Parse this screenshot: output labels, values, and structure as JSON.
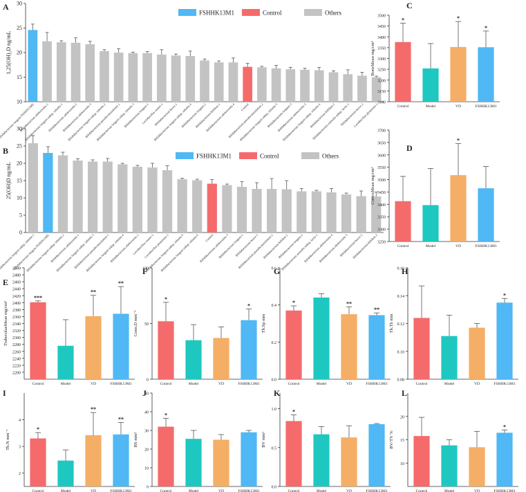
{
  "colors": {
    "FSHHK13M1": "#4fb8f5",
    "Control": "#f56b6b",
    "Model": "#1ec8c0",
    "VD": "#f5ae66",
    "Others": "#c3c3c3"
  },
  "legend": [
    {
      "label": "FSHHK13M1",
      "color_key": "FSHHK13M1"
    },
    {
      "label": "Control",
      "color_key": "Control"
    },
    {
      "label": "Others",
      "color_key": "Others"
    }
  ],
  "chart_data": [
    {
      "panel": "A",
      "type": "bar",
      "ylabel": "1,25(OH)₂D ng/mL",
      "ylim": [
        10,
        30
      ],
      "yticks": [
        10,
        15,
        20,
        25,
        30
      ],
      "categories": [
        "Bifidobacterium longum FSHHK13M1",
        "Bifidobacterium adolescentis 1",
        "Bifidobacterium longum subsp. infantis 1",
        "Bifidobacterium adolescentis 2",
        "Bifidobacterium adolescentis 3",
        "Bifidobacterium longum subsp. infantis 2",
        "Bifidobacterium pseudocatenulatum 1",
        "Bifidobacterium longum subsp. infantis 3",
        "Bifidobacterium longum 1",
        "Lactobacillus reuteri 1",
        "Bifidobacterium breve 1",
        "Bifidobacterium longum subsp. infantis 4",
        "Bifidobacterium longum 2",
        "Bifidobacterium bifidum 1",
        "Bifidobacterium adolescentis 4",
        "Control",
        "Bifidobacterium pseudocatenulatum 2",
        "Bifidobacterium longum subsp. infantis 5",
        "Bifidobacterium longum 3",
        "Bifidobacterium adolescentis 5",
        "Bifidobacterium longum subsp. infantis 6",
        "Bifidobacterium bifidum 2",
        "Bifidobacterium animalis subsp. lactis 1",
        "Bifidobacterium breve 2",
        "Lactobacillus plantarum 1"
      ],
      "groups": [
        "FSHHK13M1",
        "Others",
        "Others",
        "Others",
        "Others",
        "Others",
        "Others",
        "Others",
        "Others",
        "Others",
        "Others",
        "Others",
        "Others",
        "Others",
        "Others",
        "Control",
        "Others",
        "Others",
        "Others",
        "Others",
        "Others",
        "Others",
        "Others",
        "Others",
        "Others"
      ],
      "values": [
        24.6,
        22.3,
        22.1,
        22.0,
        21.7,
        20.3,
        20.0,
        19.9,
        19.9,
        19.6,
        19.4,
        19.3,
        18.4,
        18.0,
        18.0,
        17.1,
        17.0,
        16.8,
        16.6,
        16.5,
        16.4,
        16.0,
        15.6,
        15.3,
        15.0
      ],
      "errors": [
        1.2,
        1.8,
        0.3,
        1.0,
        0.6,
        0.3,
        0.8,
        0.2,
        0.3,
        1.0,
        0.3,
        1.0,
        0.3,
        0.3,
        0.9,
        0.7,
        0.2,
        0.6,
        0.4,
        0.3,
        0.6,
        0.3,
        0.9,
        0.7,
        0.2
      ]
    },
    {
      "panel": "B",
      "type": "bar",
      "ylabel": "25(OH)D ng/mL",
      "ylim": [
        0,
        30
      ],
      "yticks": [
        0,
        5,
        10,
        15,
        20,
        25,
        30
      ],
      "categories": [
        "Bifidobacterium longum subsp. infantis 1",
        "Bifidobacterium longum FSHHK13M1",
        "Bifidobacterium longum subsp. infantis 2",
        "Bifidobacterium adolescentis 1",
        "Bifidobacterium longum subsp. infantis 3",
        "Bifidobacterium pseudocatenulatum 1",
        "Bifidobacterium longum subsp. infantis 4",
        "Bifidobacterium adolescentis 2",
        "Lactobacillus reuteri 1",
        "Lactobacillus plantarum 1",
        "Bifidobacterium longum subsp. infantis 5",
        "Bifidobacterium longum subsp. infantis 6",
        "Control",
        "Bifidobacterium adolescentis 3",
        "Bifidobacterium longum 1",
        "Bifidobacterium breve 1",
        "Bifidobacterium pseudocatenulatum 2",
        "Bifidobacterium bifidum 1",
        "Bifidobacterium longum 2",
        "Bifidobacterium animalis subsp. lactis 1",
        "Bifidobacterium adolescentis 4",
        "Bifidobacterium adolescentis 5",
        "Bifidobacterium breve 2",
        "Bifidobacterium bifidum 2"
      ],
      "groups": [
        "Others",
        "FSHHK13M1",
        "Others",
        "Others",
        "Others",
        "Others",
        "Others",
        "Others",
        "Others",
        "Others",
        "Others",
        "Others",
        "Control",
        "Others",
        "Others",
        "Others",
        "Others",
        "Others",
        "Others",
        "Others",
        "Others",
        "Others",
        "Others",
        "Others"
      ],
      "values": [
        25.8,
        23.0,
        22.3,
        20.8,
        20.5,
        20.5,
        19.7,
        19.0,
        18.8,
        18.0,
        15.4,
        15.1,
        14.1,
        13.7,
        13.2,
        12.6,
        12.6,
        12.5,
        11.9,
        11.9,
        11.6,
        11.0,
        10.5,
        10.4
      ],
      "errors": [
        2.2,
        1.8,
        0.9,
        0.5,
        0.5,
        0.9,
        0.3,
        0.4,
        1.2,
        1.3,
        0.3,
        0.3,
        1.2,
        0.3,
        1.5,
        1.8,
        3.0,
        2.5,
        0.8,
        0.3,
        1.1,
        0.4,
        1.5,
        1.3
      ]
    },
    {
      "panel": "C",
      "type": "bar",
      "ylabel": "BoneMean mg/cm³",
      "ylim": [
        3100,
        3500
      ],
      "yticks": [
        3100,
        3150,
        3200,
        3250,
        3300,
        3350,
        3400,
        3450,
        3500
      ],
      "categories": [
        "Control",
        "Model",
        "VD",
        "FSHHK13M1"
      ],
      "values": [
        3376,
        3254,
        3353,
        3352
      ],
      "errors": [
        87,
        115,
        118,
        75
      ],
      "sig": [
        "*",
        "",
        "*",
        "*"
      ]
    },
    {
      "panel": "D",
      "type": "bar",
      "ylabel": "CortexMean mg/cm³",
      "ylim": [
        3250,
        3700
      ],
      "yticks": [
        3250,
        3300,
        3350,
        3400,
        3450,
        3500,
        3550,
        3600,
        3650,
        3700
      ],
      "categories": [
        "Control",
        "Model",
        "VD",
        "FSHHK13M1"
      ],
      "values": [
        3413,
        3397,
        3518,
        3465
      ],
      "errors": [
        100,
        148,
        128,
        88
      ],
      "sig": [
        "",
        "",
        "*",
        ""
      ]
    },
    {
      "panel": "E",
      "type": "bar",
      "ylabel": "TrabeculaeMean mg/cm³",
      "ylim": [
        2180,
        2500
      ],
      "yticks": [
        2200,
        2220,
        2240,
        2260,
        2280,
        2300,
        2320,
        2340,
        2360,
        2380,
        2400,
        2420,
        2440,
        2460,
        2480,
        2500
      ],
      "categories": [
        "Control",
        "Model",
        "VD",
        "FSHHK13M1"
      ],
      "values": [
        2401,
        2276,
        2361,
        2368
      ],
      "errors": [
        4,
        75,
        60,
        78
      ],
      "sig": [
        "***",
        "",
        "**",
        "**"
      ]
    },
    {
      "panel": "F",
      "type": "bar",
      "ylabel": "Conn.D mm⁻³",
      "ylim": [
        0,
        100
      ],
      "yticks": [
        0,
        50,
        100
      ],
      "categories": [
        "Control",
        "Model",
        "VD",
        "FSHHK13M1"
      ],
      "values": [
        52,
        35,
        37,
        53
      ],
      "errors": [
        17,
        14,
        10,
        10
      ],
      "sig": [
        "*",
        "",
        "",
        "*"
      ]
    },
    {
      "panel": "G",
      "type": "bar",
      "ylabel": "Tb.Sp mm",
      "ylim": [
        0,
        0.6
      ],
      "yticks": [
        0,
        0.2,
        0.4,
        0.6
      ],
      "categories": [
        "Control",
        "Model",
        "VD",
        "FSHHK13M1"
      ],
      "values": [
        0.37,
        0.44,
        0.35,
        0.345
      ],
      "errors": [
        0.025,
        0.02,
        0.04,
        0.012
      ],
      "sig": [
        "*",
        "",
        "**",
        "**"
      ]
    },
    {
      "panel": "H",
      "type": "bar",
      "ylabel": "Tb.Th mm",
      "ylim": [
        0.08,
        0.16
      ],
      "yticks": [
        0.08,
        0.1,
        0.12,
        0.14,
        0.16
      ],
      "categories": [
        "Control",
        "Model",
        "VD",
        "FSHHK13M1"
      ],
      "values": [
        0.124,
        0.111,
        0.117,
        0.135
      ],
      "errors": [
        0.023,
        0.015,
        0.003,
        0.003
      ],
      "sig": [
        "",
        "",
        "",
        "*"
      ]
    },
    {
      "panel": "I",
      "type": "bar",
      "ylabel": "Tb.N mm⁻¹",
      "ylim": [
        1.5,
        5
      ],
      "yticks": [
        2,
        3,
        4
      ],
      "categories": [
        "Control",
        "Model",
        "VD",
        "FSHHK13M1"
      ],
      "values": [
        3.3,
        2.47,
        3.42,
        3.45
      ],
      "errors": [
        0.22,
        0.4,
        0.85,
        0.45
      ],
      "sig": [
        "*",
        "",
        "**",
        "**"
      ]
    },
    {
      "panel": "J",
      "type": "bar",
      "ylabel": "BS mm²",
      "ylim": [
        0,
        50
      ],
      "yticks": [
        0,
        10,
        20,
        30,
        40,
        50
      ],
      "categories": [
        "Control",
        "Model",
        "VD",
        "FSHHK13M1"
      ],
      "values": [
        32,
        25.5,
        25,
        29
      ],
      "errors": [
        4.5,
        4.5,
        2.8,
        1
      ],
      "sig": [
        "*",
        "",
        "",
        ""
      ]
    },
    {
      "panel": "K",
      "type": "bar",
      "ylabel": "BV mm³",
      "ylim": [
        0,
        1.2
      ],
      "yticks": [
        0,
        0.5,
        1.0
      ],
      "categories": [
        "Control",
        "Model",
        "VD",
        "FSHHK13M1"
      ],
      "values": [
        0.84,
        0.67,
        0.63,
        0.8
      ],
      "errors": [
        0.08,
        0.1,
        0.15,
        0.008
      ],
      "sig": [
        "*",
        "",
        "",
        ""
      ]
    },
    {
      "panel": "L",
      "type": "bar",
      "ylabel": "BV/TV %",
      "ylim": [
        5,
        25
      ],
      "yticks": [
        10,
        15,
        20
      ],
      "categories": [
        "Control",
        "Model",
        "VD",
        "FSHHK13M1"
      ],
      "values": [
        15.8,
        13.8,
        13.4,
        16.5
      ],
      "errors": [
        4,
        1.2,
        3.4,
        0.6
      ],
      "sig": [
        "",
        "",
        "",
        "*"
      ]
    }
  ]
}
